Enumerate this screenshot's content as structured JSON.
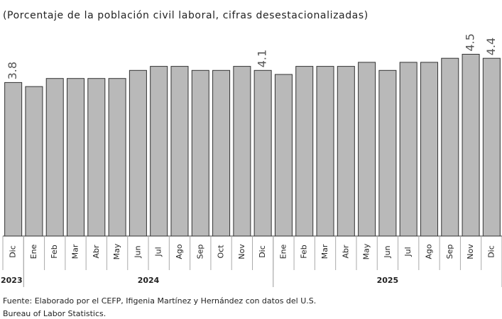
{
  "chart_data": {
    "type": "bar",
    "title": "(Porcentaje de la población civil laboral, cifras desestacionalizadas)",
    "groups": [
      {
        "name": "2023",
        "categories": [
          "Dic"
        ],
        "values": [
          3.8
        ],
        "value_labels": [
          "3.8"
        ]
      },
      {
        "name": "2024",
        "categories": [
          "Ene",
          "Feb",
          "Mar",
          "Abr",
          "May",
          "Jun",
          "Jul",
          "Ago",
          "Sep",
          "Oct",
          "Nov",
          "Dic"
        ],
        "values": [
          3.7,
          3.9,
          3.9,
          3.9,
          3.9,
          4.1,
          4.2,
          4.2,
          4.1,
          4.1,
          4.2,
          4.1
        ],
        "value_labels": [
          null,
          null,
          null,
          null,
          null,
          null,
          null,
          null,
          null,
          null,
          null,
          "4.1"
        ]
      },
      {
        "name": "2025",
        "categories": [
          "Ene",
          "Feb",
          "Mar",
          "Abr",
          "May",
          "Jun",
          "Jul",
          "Ago",
          "Sep",
          "Nov",
          "Dic"
        ],
        "values": [
          4.0,
          4.2,
          4.2,
          4.2,
          4.3,
          4.1,
          4.3,
          4.3,
          4.4,
          4.5,
          4.4
        ],
        "value_labels": [
          null,
          null,
          null,
          null,
          null,
          null,
          null,
          null,
          null,
          "4.5",
          "4.4"
        ]
      }
    ],
    "color": "#b9b9b9",
    "ylim": [
      0,
      5
    ],
    "source": [
      "Fuente: Elaborado por el CEFP, Ifigenia Martínez y Hernández con datos del U.S.",
      "Bureau of Labor Statistics."
    ]
  }
}
